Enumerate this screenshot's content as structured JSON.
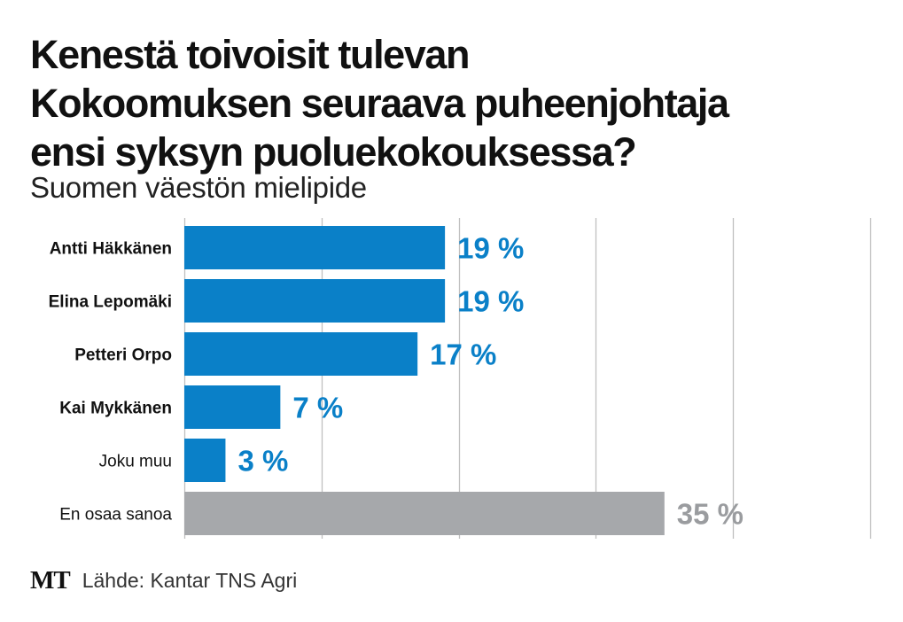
{
  "title_lines": [
    "Kenestä toivoisit tulevan",
    "Kokoomuksen seuraava puheenjohtaja",
    "ensi syksyn puoluekokouksessa?"
  ],
  "subtitle": "Suomen väestön mielipide",
  "footer": {
    "logo": "MT",
    "source": "Lähde: Kantar TNS Agri"
  },
  "colors": {
    "primary_bar": "#0a80c8",
    "secondary_bar": "#a6a8ab",
    "primary_label": "#0a80c8",
    "secondary_label": "#9a9c9f",
    "grid": "#bfbfbf",
    "text": "#111111"
  },
  "chart_data": {
    "type": "bar",
    "orientation": "horizontal",
    "title": "Kenestä toivoisit tulevan Kokoomuksen seuraava puheenjohtaja ensi syksyn puoluekokouksessa?",
    "subtitle": "Suomen väestön mielipide",
    "categories": [
      "Antti Häkkänen",
      "Elina Lepomäki",
      "Petteri Orpo",
      "Kai Mykkänen",
      "Joku muu",
      "En osaa sanoa"
    ],
    "values": [
      19,
      19,
      17,
      7,
      3,
      35
    ],
    "value_labels": [
      "19 %",
      "19 %",
      "17 %",
      "7 %",
      "3 %",
      "35 %"
    ],
    "unit": "%",
    "label_bold": [
      true,
      true,
      true,
      true,
      false,
      false
    ],
    "highlight": [
      true,
      true,
      true,
      true,
      true,
      false
    ],
    "xlim": [
      0,
      50
    ],
    "gridlines": [
      0,
      10,
      20,
      30,
      40,
      50
    ],
    "xlabel": "",
    "ylabel": "",
    "legend": "none"
  }
}
